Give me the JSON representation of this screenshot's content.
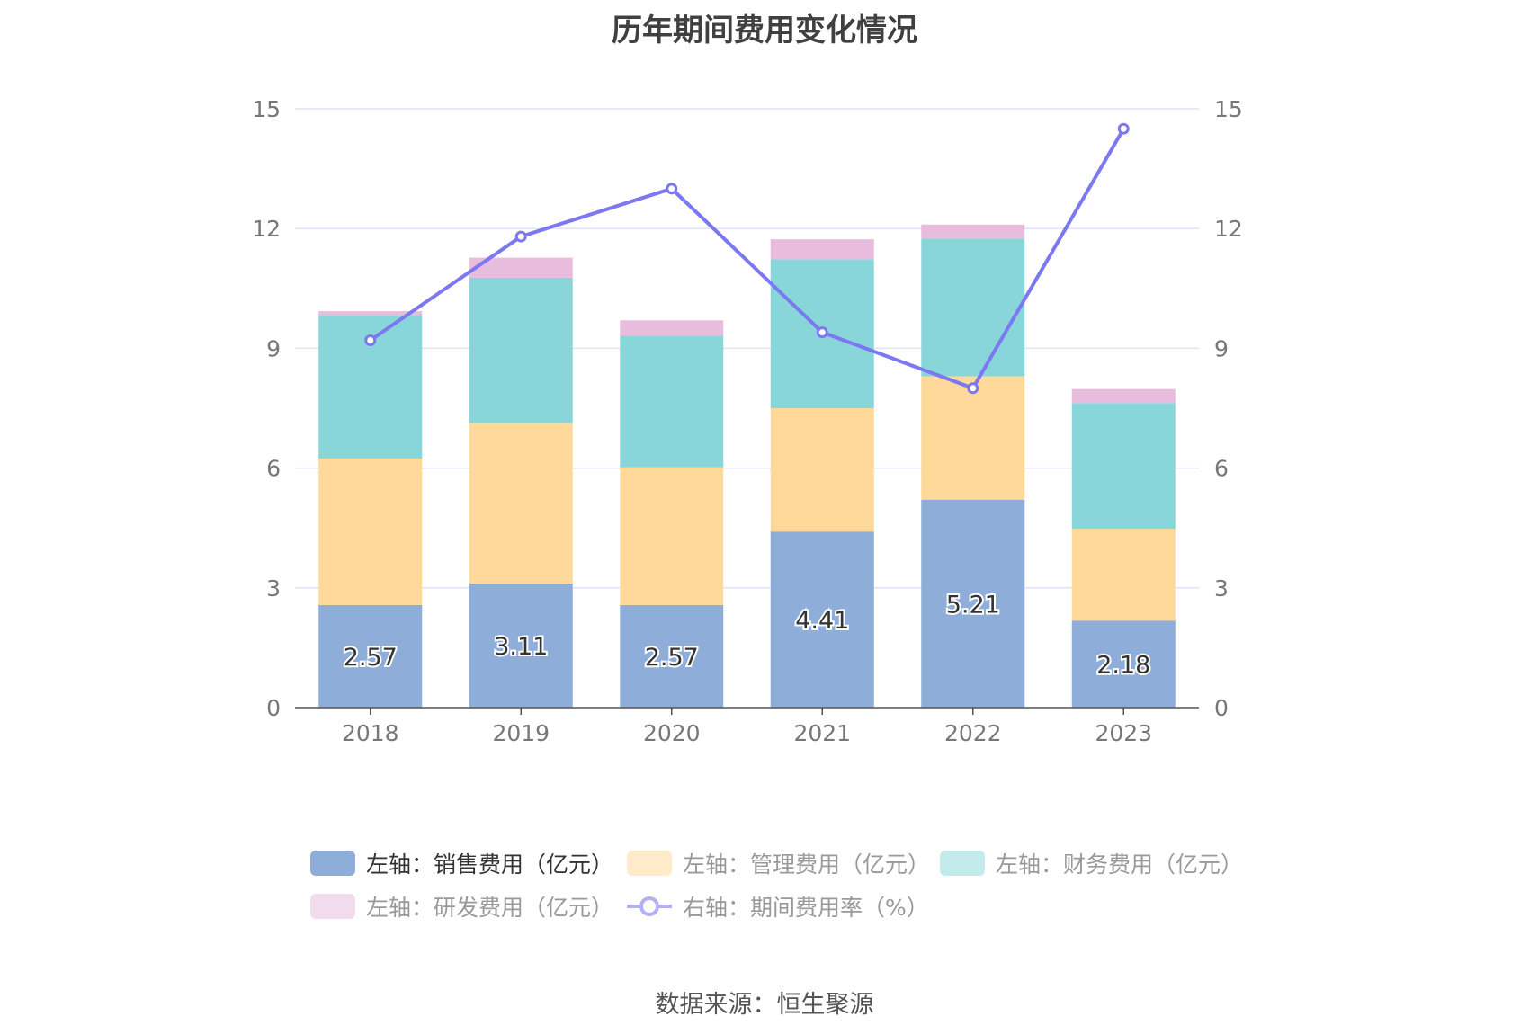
{
  "chart_data": {
    "type": "bar",
    "title": "历年期间费用变化情况",
    "categories": [
      "2018",
      "2019",
      "2020",
      "2021",
      "2022",
      "2023"
    ],
    "y_left": {
      "min": 0,
      "max": 15,
      "ticks": [
        "0",
        "3",
        "6",
        "9",
        "12",
        "15"
      ]
    },
    "y_right": {
      "min": 0,
      "max": 15,
      "ticks": [
        "0",
        "3",
        "6",
        "9",
        "12",
        "15"
      ]
    },
    "grid": true,
    "legend_position": "bottom",
    "series": [
      {
        "name": "左轴：销售费用（亿元）",
        "type": "bar",
        "stack": true,
        "axis": "left",
        "color": "#8eadd9",
        "values": [
          2.57,
          3.11,
          2.57,
          4.41,
          5.21,
          2.18
        ],
        "data_labels": [
          "2.57",
          "3.11",
          "2.57",
          "4.41",
          "5.21",
          "2.18"
        ]
      },
      {
        "name": "左轴：管理费用（亿元）",
        "type": "bar",
        "stack": true,
        "axis": "left",
        "color": "#ffd99a",
        "values": [
          3.67,
          4.02,
          3.45,
          3.09,
          3.09,
          2.3
        ]
      },
      {
        "name": "左轴：财务费用（亿元）",
        "type": "bar",
        "stack": true,
        "axis": "left",
        "color": "#88d6d9",
        "values": [
          3.59,
          3.64,
          3.3,
          3.73,
          3.45,
          3.15
        ]
      },
      {
        "name": "左轴：研发费用（亿元）",
        "type": "bar",
        "stack": true,
        "axis": "left",
        "color": "#e8bcdd",
        "values": [
          0.1,
          0.5,
          0.38,
          0.5,
          0.35,
          0.35
        ]
      },
      {
        "name": "右轴：期间费用率（%）",
        "type": "line",
        "axis": "right",
        "color": "#7b78f0",
        "values": [
          9.2,
          11.8,
          13.0,
          9.4,
          8.0,
          14.5
        ]
      }
    ],
    "legend_active": [
      true,
      false,
      false,
      false,
      false
    ],
    "legend_swatch_colors": [
      "#8eadd9",
      "#ffebc9",
      "#c4ebec",
      "#f0dcec",
      "#b3b0f5"
    ]
  },
  "source": "数据来源：恒生聚源"
}
